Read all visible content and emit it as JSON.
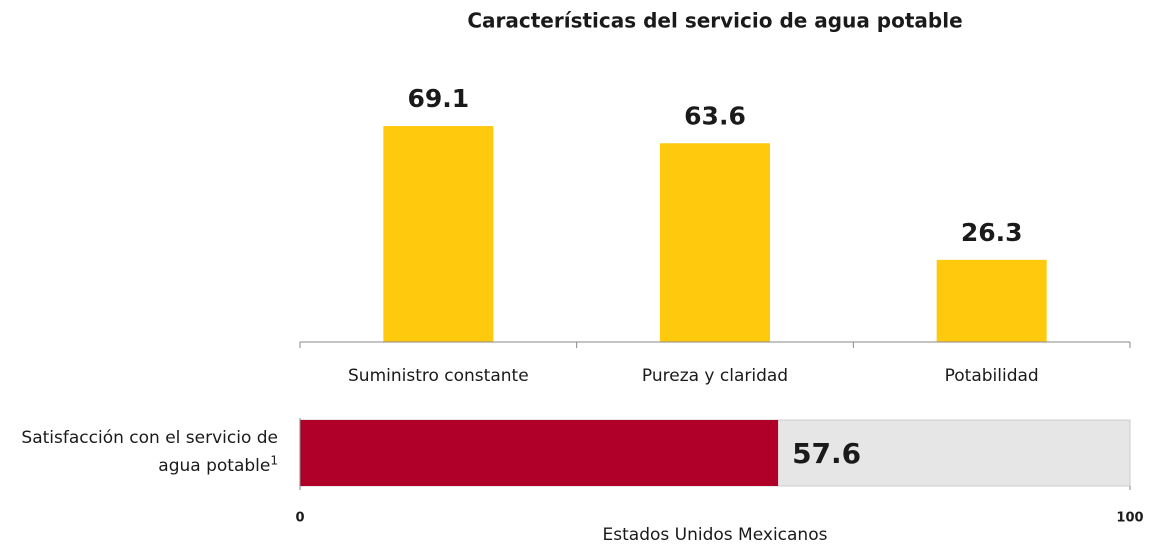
{
  "chart_data": [
    {
      "type": "bar",
      "title": "Características del servicio de agua potable",
      "categories": [
        "Suministro constante",
        "Pureza y claridad",
        "Potabilidad"
      ],
      "values": [
        69.1,
        63.6,
        26.3
      ],
      "color": "#FFC90E",
      "ylim": [
        0,
        80
      ]
    },
    {
      "type": "hbar",
      "categories": [
        "Satisfacción con el servicio de agua potable"
      ],
      "category_superscripts": [
        "1"
      ],
      "values": [
        57.6
      ],
      "color": "#B0002A",
      "background_color": "#E6E6E6",
      "xlim": [
        0,
        100
      ],
      "xticks": [
        0,
        100
      ],
      "xlabel": "Estados Unidos Mexicanos"
    }
  ]
}
